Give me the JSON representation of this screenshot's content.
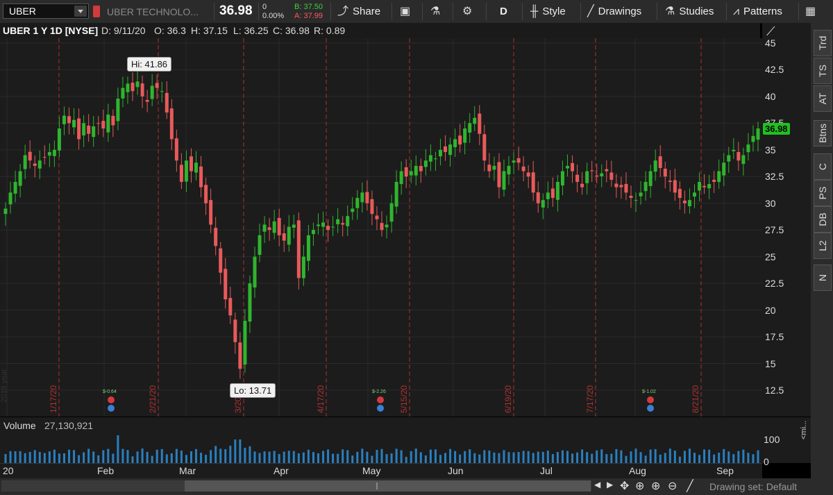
{
  "toolbar": {
    "symbol": "UBER",
    "company": "UBER TECHNOLO...",
    "last": "36.98",
    "change": "0",
    "change_pct": "0.00%",
    "bid": "B: 37.50",
    "ask": "A: 37.99",
    "share": "Share",
    "period": "D",
    "style": "Style",
    "drawings": "Drawings",
    "studies": "Studies",
    "patterns": "Patterns"
  },
  "infobar": {
    "title": "UBER 1 Y 1D [NYSE]",
    "date": "D: 9/11/20",
    "open": "O: 36.3",
    "high": "H: 37.15",
    "low": "L: 36.25",
    "close": "C: 36.98",
    "range": "R: 0.89"
  },
  "chart": {
    "hi_label": "Hi: 41.86",
    "lo_label": "Lo: 13.71",
    "price_tag": "36.98",
    "y_ticks": [
      "45",
      "42.5",
      "40",
      "37.5",
      "35",
      "32.5",
      "30",
      "27.5",
      "25",
      "22.5",
      "20",
      "17.5",
      "15",
      "12.5"
    ],
    "date_markers": [
      "1/17/20",
      "2/21/20",
      "3/20/20",
      "4/17/20",
      "5/15/20",
      "6/19/20",
      "7/17/20",
      "8/21/20"
    ],
    "events": [
      "$-0.64",
      "$-2.26",
      "$-1.02"
    ],
    "watermark": "2019 year"
  },
  "volume": {
    "label": "Volume",
    "value": "27,130,921",
    "axis_top": "100",
    "axis_bottom": "0",
    "unit": "<mi..."
  },
  "time_axis": [
    "20",
    "Feb",
    "Mar",
    "Apr",
    "May",
    "Jun",
    "Jul",
    "Aug",
    "Sep"
  ],
  "sidebar": [
    "Trd",
    "TS",
    "AT",
    "Btns",
    "C",
    "PS",
    "DB",
    "L2",
    "N"
  ],
  "footer": {
    "drawing_set": "Drawing set: Default"
  },
  "colors": {
    "up": "#2fb52f",
    "down": "#e85a5a",
    "volume": "#2a7fbf",
    "marker": "#b03030"
  }
}
